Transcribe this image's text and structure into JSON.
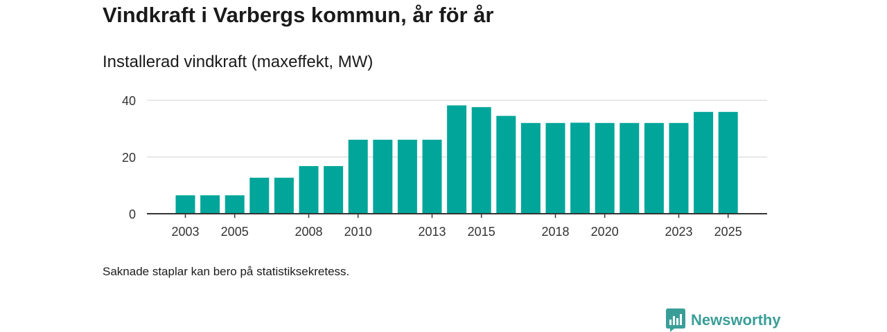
{
  "header": {
    "title": "Vindkraft i Varbergs kommun, år för år",
    "subtitle": "Installerad vindkraft (maxeffekt, MW)"
  },
  "footer": {
    "note": "Saknade staplar kan bero på statistiksekretess.",
    "brand": "Newsworthy"
  },
  "colors": {
    "bar": "#02a59a",
    "grid": "#d9d9d9",
    "axis": "#333333",
    "brand": "#3a9e98"
  },
  "chart_data": {
    "type": "bar",
    "title": "Vindkraft i Varbergs kommun, år för år",
    "subtitle": "Installerad vindkraft (maxeffekt, MW)",
    "xlabel": "",
    "ylabel": "",
    "ylim": [
      0,
      45
    ],
    "yticks": [
      0,
      20,
      40
    ],
    "grid": true,
    "categories": [
      "2003",
      "2004",
      "2005",
      "2006",
      "2007",
      "2008",
      "2009",
      "2010",
      "2011",
      "2012",
      "2013",
      "2014",
      "2015",
      "2016",
      "2017",
      "2018",
      "2019",
      "2020",
      "2021",
      "2022",
      "2023",
      "2024",
      "2025"
    ],
    "values": [
      6.5,
      6.5,
      6.5,
      12.7,
      12.7,
      16.8,
      16.8,
      26.1,
      26.1,
      26.1,
      26.1,
      38.2,
      37.6,
      34.5,
      32.0,
      32.0,
      32.1,
      32.0,
      32.0,
      32.0,
      32.0,
      35.9,
      35.9
    ],
    "xtick_labels": [
      "2003",
      "2005",
      "2008",
      "2010",
      "2013",
      "2015",
      "2018",
      "2020",
      "2023",
      "2025"
    ]
  }
}
